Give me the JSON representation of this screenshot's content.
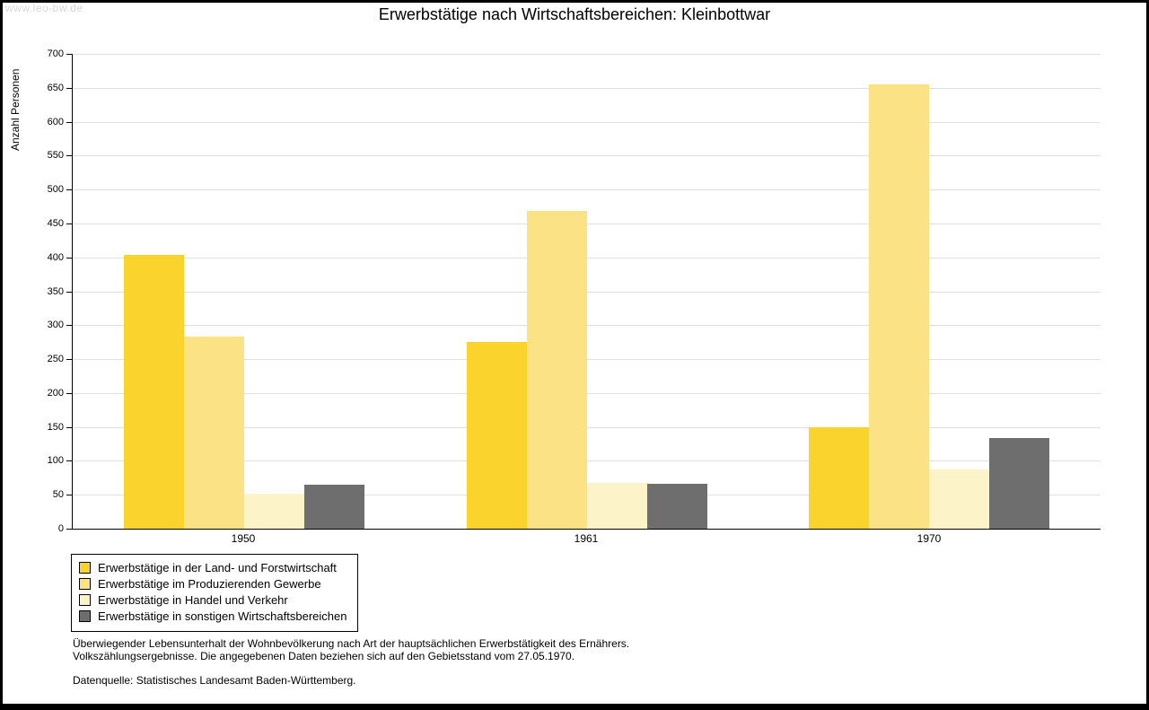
{
  "watermark": "www.leo-bw.de",
  "chart_data": {
    "type": "bar",
    "title": "Erwerbstätige nach Wirtschaftsbereichen: Kleinbottwar",
    "xlabel": "",
    "ylabel": "Anzahl Personen",
    "ylim": [
      0,
      700
    ],
    "ytick_step": 50,
    "grid": true,
    "legend_position": "bottom-left",
    "categories": [
      "1950",
      "1961",
      "1970"
    ],
    "series": [
      {
        "name": "Erwerbstätige in der Land- und Forstwirtschaft",
        "color": "#FBD32D",
        "values": [
          403,
          275,
          150
        ]
      },
      {
        "name": "Erwerbstätige im Produzierenden Gewerbe",
        "color": "#FAE285",
        "values": [
          283,
          468,
          655
        ]
      },
      {
        "name": "Erwerbstätige in Handel und Verkehr",
        "color": "#FDF3C8",
        "values": [
          52,
          68,
          88
        ]
      },
      {
        "name": "Erwerbstätige in sonstigen Wirtschaftsbereichen",
        "color": "#6E6E6E",
        "values": [
          65,
          66,
          134
        ]
      }
    ]
  },
  "footer": {
    "note_line1": "Überwiegender Lebensunterhalt der Wohnbevölkerung nach Art der hauptsächlichen Erwerbstätigkeit des Ernährers.",
    "note_line2": "Volkszählungsergebnisse. Die angegebenen Daten beziehen sich auf den Gebietsstand vom 27.05.1970.",
    "source": "Datenquelle: Statistisches Landesamt Baden-Württemberg."
  }
}
